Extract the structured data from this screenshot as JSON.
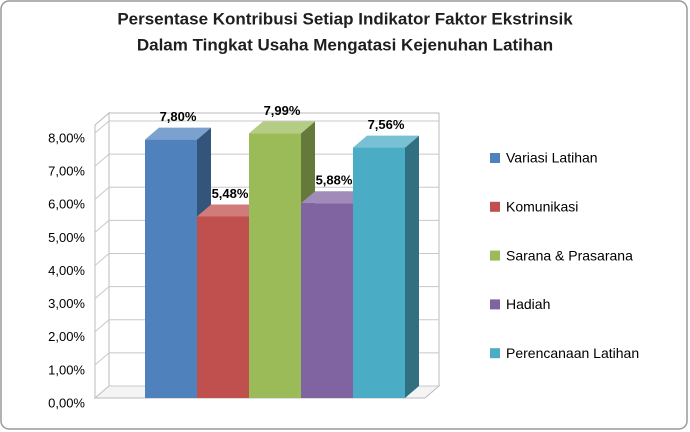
{
  "chart_data": {
    "type": "bar",
    "title": [
      "Persentase  Kontribusi  Setiap Indikator Faktor Ekstrinsik",
      "Dalam Tingkat Usaha  Mengatasi Kejenuhan Latihan"
    ],
    "series": [
      {
        "name": "Variasi Latihan",
        "color": "#4f81bd",
        "values": [
          7.8
        ],
        "value_labels": [
          "7,80%"
        ]
      },
      {
        "name": "Komunikasi",
        "color": "#c0504d",
        "values": [
          5.48
        ],
        "value_labels": [
          "5,48%"
        ]
      },
      {
        "name": "Sarana & Prasarana",
        "color": "#9bbb59",
        "values": [
          7.99
        ],
        "value_labels": [
          "7,99%"
        ]
      },
      {
        "name": "Hadiah",
        "color": "#8064a2",
        "values": [
          5.88
        ],
        "value_labels": [
          "5,88%"
        ]
      },
      {
        "name": "Perencanaan Latihan",
        "color": "#4bacc6",
        "values": [
          7.56
        ],
        "value_labels": [
          "7,56%"
        ]
      }
    ],
    "ylim": [
      0,
      8
    ],
    "yticks": [
      {
        "value": 0,
        "label": "0,00%"
      },
      {
        "value": 1,
        "label": "1,00%"
      },
      {
        "value": 2,
        "label": "2,00%"
      },
      {
        "value": 3,
        "label": "3,00%"
      },
      {
        "value": 4,
        "label": "4,00%"
      },
      {
        "value": 5,
        "label": "5,00%"
      },
      {
        "value": 6,
        "label": "6,00%"
      },
      {
        "value": 7,
        "label": "7,00%"
      },
      {
        "value": 8,
        "label": "8,00%"
      }
    ],
    "grid": true,
    "legend": "right"
  }
}
